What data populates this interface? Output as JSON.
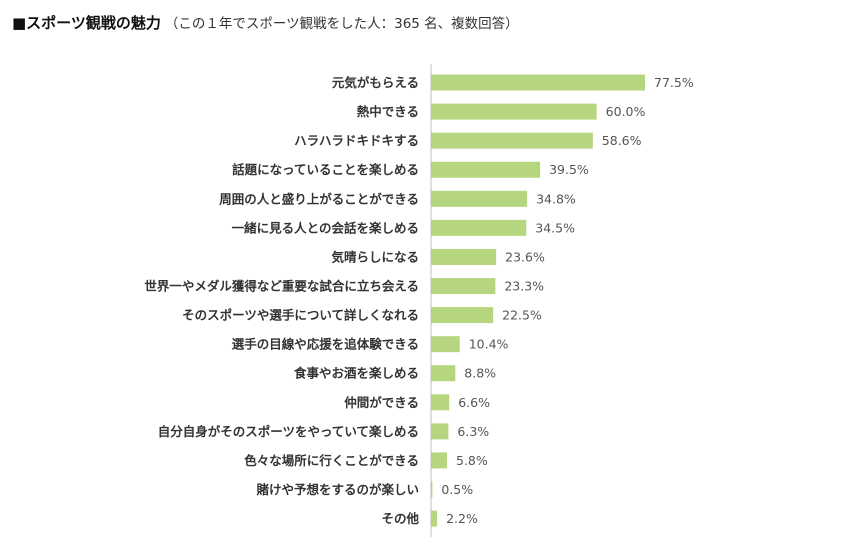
{
  "title": "■スポーツ観戦の魅力",
  "subtitle": "（この１年でスポーツ観戦をした人：365 名、複数回答）",
  "chart_data": {
    "type": "bar",
    "orientation": "horizontal",
    "bar_color": "#b5d57f",
    "axis_color": "#bfbfbf",
    "value_suffix": "%",
    "xlim": [
      0,
      100
    ],
    "grid": false,
    "categories": [
      "元気がもらえる",
      "熱中できる",
      "ハラハラドキドキする",
      "話題になっていることを楽しめる",
      "周囲の人と盛り上がることができる",
      "一緒に見る人との会話を楽しめる",
      "気晴らしになる",
      "世界一やメダル獲得など重要な試合に立ち会える",
      "そのスポーツや選手について詳しくなれる",
      "選手の目線や応援を追体験できる",
      "食事やお酒を楽しめる",
      "仲間ができる",
      "自分自身がそのスポーツをやっていて楽しめる",
      "色々な場所に行くことができる",
      "賭けや予想をするのが楽しい",
      "その他"
    ],
    "values": [
      77.5,
      60.0,
      58.6,
      39.5,
      34.8,
      34.5,
      23.6,
      23.3,
      22.5,
      10.4,
      8.8,
      6.6,
      6.3,
      5.8,
      0.5,
      2.2
    ],
    "value_labels": [
      "77.5%",
      "60.0%",
      "58.6%",
      "39.5%",
      "34.8%",
      "34.5%",
      "23.6%",
      "23.3%",
      "22.5%",
      "10.4%",
      "8.8%",
      "6.6%",
      "6.3%",
      "5.8%",
      "0.5%",
      "2.2%"
    ]
  }
}
